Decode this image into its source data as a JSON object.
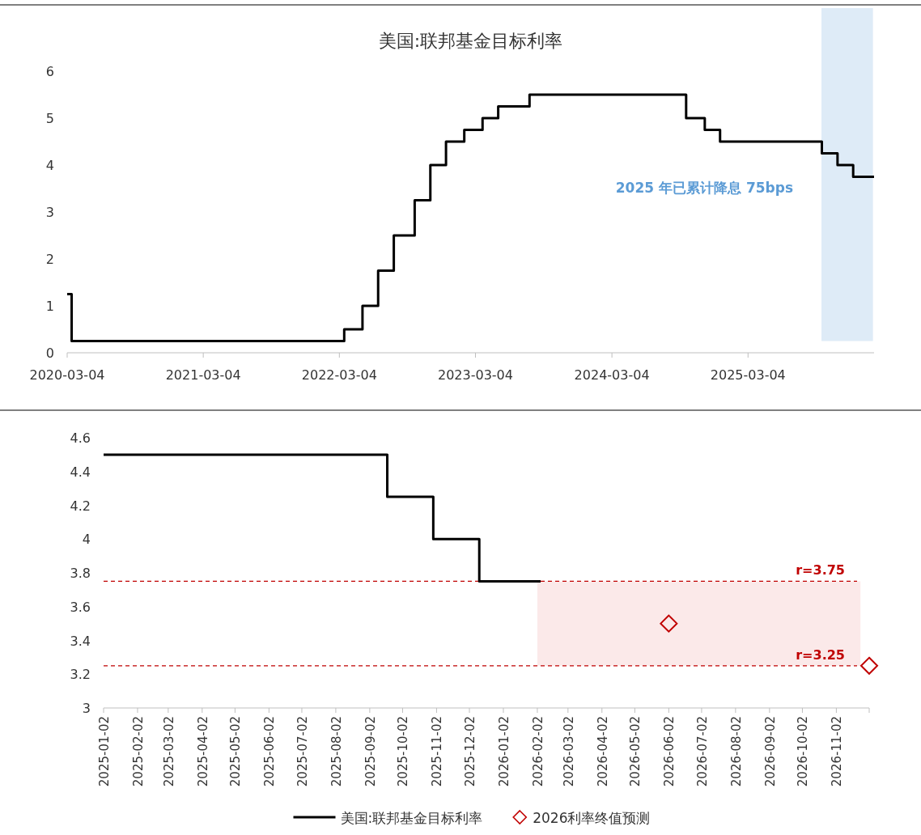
{
  "chart_data": [
    {
      "type": "step",
      "title": "美国:联邦基金目标利率",
      "series": [
        {
          "color": "#000000",
          "x": [
            "2020-03-04",
            "2020-03-16",
            "2022-03-17",
            "2022-05-05",
            "2022-06-16",
            "2022-07-28",
            "2022-09-22",
            "2022-11-03",
            "2022-12-15",
            "2023-02-02",
            "2023-03-23",
            "2023-05-04",
            "2023-07-27",
            "2024-09-19",
            "2024-11-08",
            "2024-12-19",
            "2025-09-18",
            "2025-10-30",
            "2025-12-11",
            "2026-02-05"
          ],
          "values": [
            1.25,
            0.25,
            0.5,
            1.0,
            1.75,
            2.5,
            3.25,
            4.0,
            4.5,
            4.75,
            5.0,
            5.25,
            5.5,
            5.0,
            4.75,
            4.5,
            4.25,
            4.0,
            3.75,
            3.75
          ]
        }
      ],
      "xlim": [
        "2020-03-04",
        "2026-02-05"
      ],
      "xticks": [
        "2020-03-04",
        "2021-03-04",
        "2022-03-04",
        "2023-03-04",
        "2024-03-04",
        "2025-03-04"
      ],
      "ylim": [
        0,
        6
      ],
      "yticks": [
        0,
        1,
        2,
        3,
        4,
        5,
        6
      ],
      "bands": [
        {
          "axis": "x",
          "from": "2025-09-17",
          "to": "2026-02-02",
          "color": "#deebf7"
        }
      ],
      "annotations": [
        "2025 年已累计降息 75bps"
      ]
    },
    {
      "type": "step",
      "series": [
        {
          "name": "美国:联邦基金目标利率",
          "color": "#000000",
          "x": [
            "2025-01-02",
            "2025-09-18",
            "2025-10-30",
            "2025-12-11",
            "2026-02-05"
          ],
          "values": [
            4.5,
            4.25,
            4.0,
            3.75,
            3.75
          ]
        },
        {
          "name": "2026利率终值预测",
          "type": "scatter",
          "marker": "diamond",
          "color": "#c00000",
          "x": [
            "2026-06-02",
            "2026-12-02"
          ],
          "values": [
            3.5,
            3.25
          ]
        }
      ],
      "xlim": [
        "2025-01-02",
        "2026-12-02"
      ],
      "xticks": [
        "2025-01-02",
        "2025-02-02",
        "2025-03-02",
        "2025-04-02",
        "2025-05-02",
        "2025-06-02",
        "2025-07-02",
        "2025-08-02",
        "2025-09-02",
        "2025-10-02",
        "2025-11-02",
        "2025-12-02",
        "2026-01-02",
        "2026-02-02",
        "2026-03-02",
        "2026-04-02",
        "2026-05-02",
        "2026-06-02",
        "2026-07-02",
        "2026-08-02",
        "2026-09-02",
        "2026-10-02",
        "2026-11-02",
        {
          "value": "2026-12-02",
          "label": null
        }
      ],
      "ylim": [
        3,
        4.6
      ],
      "yticks": [
        3,
        3.2,
        3.4,
        3.6,
        3.8,
        4,
        4.2,
        4.4,
        4.6
      ],
      "ref_lines": [
        {
          "axis": "y",
          "value": 3.75,
          "label": "r=3.75",
          "color": "#c00000",
          "line_style": "dashed"
        },
        {
          "axis": "y",
          "value": 3.25,
          "label": "r=3.25",
          "color": "#c00000",
          "line_style": "dashed"
        }
      ],
      "bands": [
        {
          "axis": "x",
          "from": "2026-02-02",
          "to": "2026-11-24",
          "color": "#fbe9e9"
        }
      ],
      "legend": "bottom"
    }
  ]
}
